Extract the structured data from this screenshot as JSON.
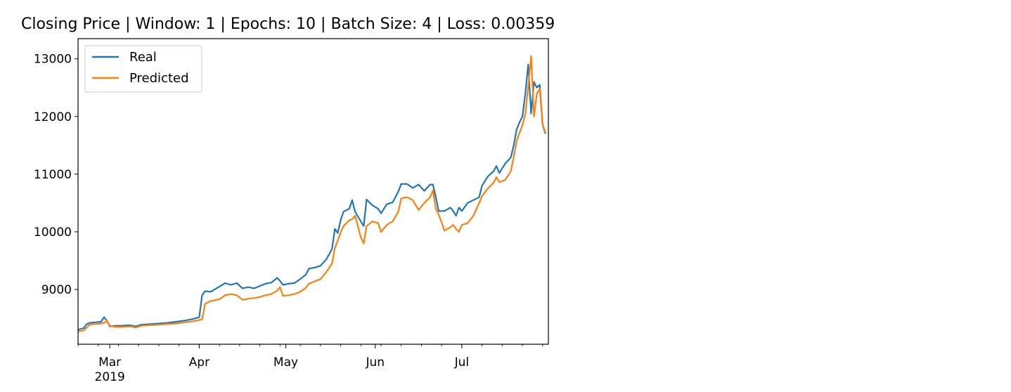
{
  "chart_data": {
    "type": "line",
    "title": "Closing Price | Window: 1 | Epochs: 10 | Batch Size: 4 | Loss: 0.00359",
    "xlabel": "",
    "ylabel": "",
    "x_range": [
      "2019-02-18",
      "2019-07-31"
    ],
    "ylim": [
      8050,
      13350
    ],
    "y_ticks": [
      9000,
      10000,
      11000,
      12000,
      13000
    ],
    "y_tick_labels": [
      "9000",
      "10000",
      "11000",
      "12000",
      "13000"
    ],
    "x_ticks": [
      {
        "date": "2019-03-01",
        "label": "Mar",
        "sublabel": "2019"
      },
      {
        "date": "2019-04-01",
        "label": "Apr",
        "sublabel": ""
      },
      {
        "date": "2019-05-01",
        "label": "May",
        "sublabel": ""
      },
      {
        "date": "2019-06-01",
        "label": "Jun",
        "sublabel": ""
      },
      {
        "date": "2019-07-01",
        "label": "Jul",
        "sublabel": ""
      }
    ],
    "grid": false,
    "legend_position": "upper-left",
    "series": [
      {
        "name": "Real",
        "color": "#1f77b4",
        "points": [
          [
            "2019-02-18",
            8300
          ],
          [
            "2019-02-20",
            8330
          ],
          [
            "2019-02-21",
            8400
          ],
          [
            "2019-02-22",
            8420
          ],
          [
            "2019-02-24",
            8430
          ],
          [
            "2019-02-26",
            8440
          ],
          [
            "2019-02-27",
            8520
          ],
          [
            "2019-02-28",
            8460
          ],
          [
            "2019-03-01",
            8360
          ],
          [
            "2019-03-03",
            8370
          ],
          [
            "2019-03-05",
            8370
          ],
          [
            "2019-03-08",
            8380
          ],
          [
            "2019-03-10",
            8360
          ],
          [
            "2019-03-12",
            8390
          ],
          [
            "2019-03-15",
            8400
          ],
          [
            "2019-03-18",
            8410
          ],
          [
            "2019-03-21",
            8420
          ],
          [
            "2019-03-24",
            8440
          ],
          [
            "2019-03-27",
            8460
          ],
          [
            "2019-03-30",
            8490
          ],
          [
            "2019-04-01",
            8520
          ],
          [
            "2019-04-02",
            8900
          ],
          [
            "2019-04-03",
            8970
          ],
          [
            "2019-04-05",
            8960
          ],
          [
            "2019-04-08",
            9050
          ],
          [
            "2019-04-10",
            9110
          ],
          [
            "2019-04-12",
            9080
          ],
          [
            "2019-04-14",
            9110
          ],
          [
            "2019-04-16",
            9020
          ],
          [
            "2019-04-18",
            9040
          ],
          [
            "2019-04-20",
            9020
          ],
          [
            "2019-04-22",
            9060
          ],
          [
            "2019-04-24",
            9100
          ],
          [
            "2019-04-26",
            9120
          ],
          [
            "2019-04-28",
            9200
          ],
          [
            "2019-04-29",
            9150
          ],
          [
            "2019-04-30",
            9080
          ],
          [
            "2019-05-02",
            9100
          ],
          [
            "2019-05-04",
            9110
          ],
          [
            "2019-05-06",
            9180
          ],
          [
            "2019-05-08",
            9260
          ],
          [
            "2019-05-09",
            9360
          ],
          [
            "2019-05-11",
            9380
          ],
          [
            "2019-05-13",
            9410
          ],
          [
            "2019-05-15",
            9520
          ],
          [
            "2019-05-17",
            9700
          ],
          [
            "2019-05-18",
            10050
          ],
          [
            "2019-05-19",
            9980
          ],
          [
            "2019-05-20",
            10200
          ],
          [
            "2019-05-21",
            10350
          ],
          [
            "2019-05-23",
            10400
          ],
          [
            "2019-05-24",
            10550
          ],
          [
            "2019-05-25",
            10350
          ],
          [
            "2019-05-27",
            10180
          ],
          [
            "2019-05-28",
            10100
          ],
          [
            "2019-05-29",
            10560
          ],
          [
            "2019-05-31",
            10460
          ],
          [
            "2019-06-02",
            10400
          ],
          [
            "2019-06-03",
            10320
          ],
          [
            "2019-06-05",
            10480
          ],
          [
            "2019-06-07",
            10510
          ],
          [
            "2019-06-09",
            10700
          ],
          [
            "2019-06-10",
            10830
          ],
          [
            "2019-06-12",
            10830
          ],
          [
            "2019-06-14",
            10760
          ],
          [
            "2019-06-16",
            10820
          ],
          [
            "2019-06-18",
            10710
          ],
          [
            "2019-06-20",
            10820
          ],
          [
            "2019-06-21",
            10820
          ],
          [
            "2019-06-22",
            10600
          ],
          [
            "2019-06-23",
            10360
          ],
          [
            "2019-06-25",
            10360
          ],
          [
            "2019-06-27",
            10420
          ],
          [
            "2019-06-28",
            10360
          ],
          [
            "2019-06-29",
            10280
          ],
          [
            "2019-06-30",
            10420
          ],
          [
            "2019-07-01",
            10360
          ],
          [
            "2019-07-03",
            10500
          ],
          [
            "2019-07-05",
            10550
          ],
          [
            "2019-07-07",
            10600
          ],
          [
            "2019-07-08",
            10800
          ],
          [
            "2019-07-10",
            10960
          ],
          [
            "2019-07-12",
            11050
          ],
          [
            "2019-07-13",
            11140
          ],
          [
            "2019-07-14",
            11020
          ],
          [
            "2019-07-16",
            11180
          ],
          [
            "2019-07-18",
            11290
          ],
          [
            "2019-07-19",
            11500
          ],
          [
            "2019-07-20",
            11780
          ],
          [
            "2019-07-21",
            11900
          ],
          [
            "2019-07-22",
            12000
          ],
          [
            "2019-07-23",
            12400
          ],
          [
            "2019-07-24",
            12900
          ],
          [
            "2019-07-25",
            12050
          ],
          [
            "2019-07-26",
            12600
          ],
          [
            "2019-07-27",
            12500
          ],
          [
            "2019-07-28",
            12550
          ],
          [
            "2019-07-29",
            11850
          ],
          [
            "2019-07-30",
            11700
          ]
        ]
      },
      {
        "name": "Predicted",
        "color": "#ff7f0e",
        "points": [
          [
            "2019-02-18",
            8270
          ],
          [
            "2019-02-20",
            8290
          ],
          [
            "2019-02-21",
            8340
          ],
          [
            "2019-02-22",
            8390
          ],
          [
            "2019-02-24",
            8400
          ],
          [
            "2019-02-26",
            8410
          ],
          [
            "2019-02-27",
            8420
          ],
          [
            "2019-02-28",
            8460
          ],
          [
            "2019-03-01",
            8370
          ],
          [
            "2019-03-03",
            8350
          ],
          [
            "2019-03-05",
            8350
          ],
          [
            "2019-03-08",
            8360
          ],
          [
            "2019-03-10",
            8340
          ],
          [
            "2019-03-12",
            8370
          ],
          [
            "2019-03-15",
            8380
          ],
          [
            "2019-03-18",
            8390
          ],
          [
            "2019-03-21",
            8400
          ],
          [
            "2019-03-24",
            8410
          ],
          [
            "2019-03-27",
            8430
          ],
          [
            "2019-03-30",
            8450
          ],
          [
            "2019-04-01",
            8470
          ],
          [
            "2019-04-02",
            8480
          ],
          [
            "2019-04-03",
            8750
          ],
          [
            "2019-04-05",
            8800
          ],
          [
            "2019-04-08",
            8830
          ],
          [
            "2019-04-10",
            8900
          ],
          [
            "2019-04-12",
            8920
          ],
          [
            "2019-04-14",
            8900
          ],
          [
            "2019-04-16",
            8820
          ],
          [
            "2019-04-18",
            8840
          ],
          [
            "2019-04-20",
            8850
          ],
          [
            "2019-04-22",
            8870
          ],
          [
            "2019-04-24",
            8900
          ],
          [
            "2019-04-26",
            8920
          ],
          [
            "2019-04-28",
            8980
          ],
          [
            "2019-04-29",
            9040
          ],
          [
            "2019-04-30",
            8890
          ],
          [
            "2019-05-02",
            8900
          ],
          [
            "2019-05-04",
            8920
          ],
          [
            "2019-05-06",
            8960
          ],
          [
            "2019-05-08",
            9030
          ],
          [
            "2019-05-09",
            9100
          ],
          [
            "2019-05-11",
            9140
          ],
          [
            "2019-05-13",
            9180
          ],
          [
            "2019-05-15",
            9300
          ],
          [
            "2019-05-17",
            9450
          ],
          [
            "2019-05-18",
            9720
          ],
          [
            "2019-05-19",
            9850
          ],
          [
            "2019-05-20",
            9990
          ],
          [
            "2019-05-21",
            10100
          ],
          [
            "2019-05-23",
            10200
          ],
          [
            "2019-05-24",
            10220
          ],
          [
            "2019-05-25",
            10280
          ],
          [
            "2019-05-27",
            9900
          ],
          [
            "2019-05-28",
            9800
          ],
          [
            "2019-05-29",
            10100
          ],
          [
            "2019-05-31",
            10180
          ],
          [
            "2019-06-02",
            10150
          ],
          [
            "2019-06-03",
            10000
          ],
          [
            "2019-06-05",
            10120
          ],
          [
            "2019-06-07",
            10180
          ],
          [
            "2019-06-09",
            10350
          ],
          [
            "2019-06-10",
            10580
          ],
          [
            "2019-06-12",
            10600
          ],
          [
            "2019-06-14",
            10550
          ],
          [
            "2019-06-16",
            10380
          ],
          [
            "2019-06-18",
            10500
          ],
          [
            "2019-06-20",
            10600
          ],
          [
            "2019-06-21",
            10720
          ],
          [
            "2019-06-22",
            10400
          ],
          [
            "2019-06-23",
            10300
          ],
          [
            "2019-06-25",
            10020
          ],
          [
            "2019-06-27",
            10080
          ],
          [
            "2019-06-28",
            10120
          ],
          [
            "2019-06-29",
            10050
          ],
          [
            "2019-06-30",
            10000
          ],
          [
            "2019-07-01",
            10120
          ],
          [
            "2019-07-03",
            10150
          ],
          [
            "2019-07-05",
            10280
          ],
          [
            "2019-07-07",
            10500
          ],
          [
            "2019-07-08",
            10620
          ],
          [
            "2019-07-10",
            10750
          ],
          [
            "2019-07-12",
            10850
          ],
          [
            "2019-07-13",
            10950
          ],
          [
            "2019-07-14",
            10860
          ],
          [
            "2019-07-16",
            10900
          ],
          [
            "2019-07-18",
            11050
          ],
          [
            "2019-07-19",
            11300
          ],
          [
            "2019-07-20",
            11580
          ],
          [
            "2019-07-21",
            11720
          ],
          [
            "2019-07-22",
            11850
          ],
          [
            "2019-07-23",
            12050
          ],
          [
            "2019-07-24",
            12520
          ],
          [
            "2019-07-25",
            13050
          ],
          [
            "2019-07-26",
            12000
          ],
          [
            "2019-07-27",
            12400
          ],
          [
            "2019-07-28",
            12480
          ],
          [
            "2019-07-29",
            11850
          ],
          [
            "2019-07-30",
            11720
          ]
        ]
      }
    ]
  }
}
